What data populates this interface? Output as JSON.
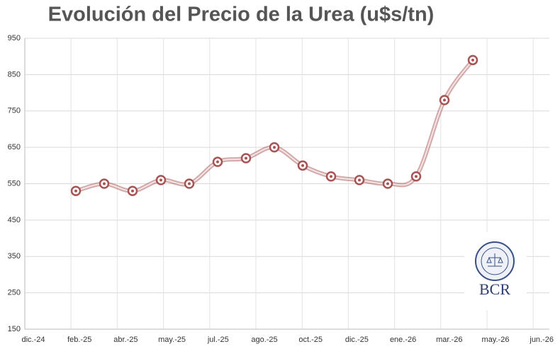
{
  "chart_data": {
    "type": "line",
    "title": "Evolución del Precio de la Urea (u$s/tn)",
    "x": [
      1.8,
      2.8,
      3.8,
      4.8,
      5.8,
      6.8,
      7.8,
      8.8,
      9.8,
      10.8,
      11.8,
      12.8,
      13.8,
      14.8,
      15.8
    ],
    "series": [
      {
        "name": "Urea",
        "color": "#a85454",
        "values": [
          530,
          550,
          530,
          560,
          550,
          610,
          620,
          650,
          600,
          570,
          560,
          550,
          570,
          780,
          890
        ]
      }
    ],
    "xlim": [
      0,
      18.5
    ],
    "xticks": [
      {
        "value": 0,
        "label": "dic.-24"
      },
      {
        "value": 1.63,
        "label": "feb.-25"
      },
      {
        "value": 3.26,
        "label": "abr.-25"
      },
      {
        "value": 4.89,
        "label": "may.-25"
      },
      {
        "value": 6.52,
        "label": "jul.-25"
      },
      {
        "value": 8.15,
        "label": "ago.-25"
      },
      {
        "value": 9.78,
        "label": "oct.-25"
      },
      {
        "value": 11.41,
        "label": "dic.-25"
      },
      {
        "value": 13.04,
        "label": "ene.-26"
      },
      {
        "value": 14.67,
        "label": "mar.-26"
      },
      {
        "value": 16.3,
        "label": "may.-26"
      },
      {
        "value": 17.93,
        "label": "jun.-26"
      }
    ],
    "ylim": [
      150,
      950
    ],
    "yticks": [
      150,
      250,
      350,
      450,
      550,
      650,
      750,
      850,
      950
    ],
    "grid": true,
    "logo": "BCR"
  }
}
